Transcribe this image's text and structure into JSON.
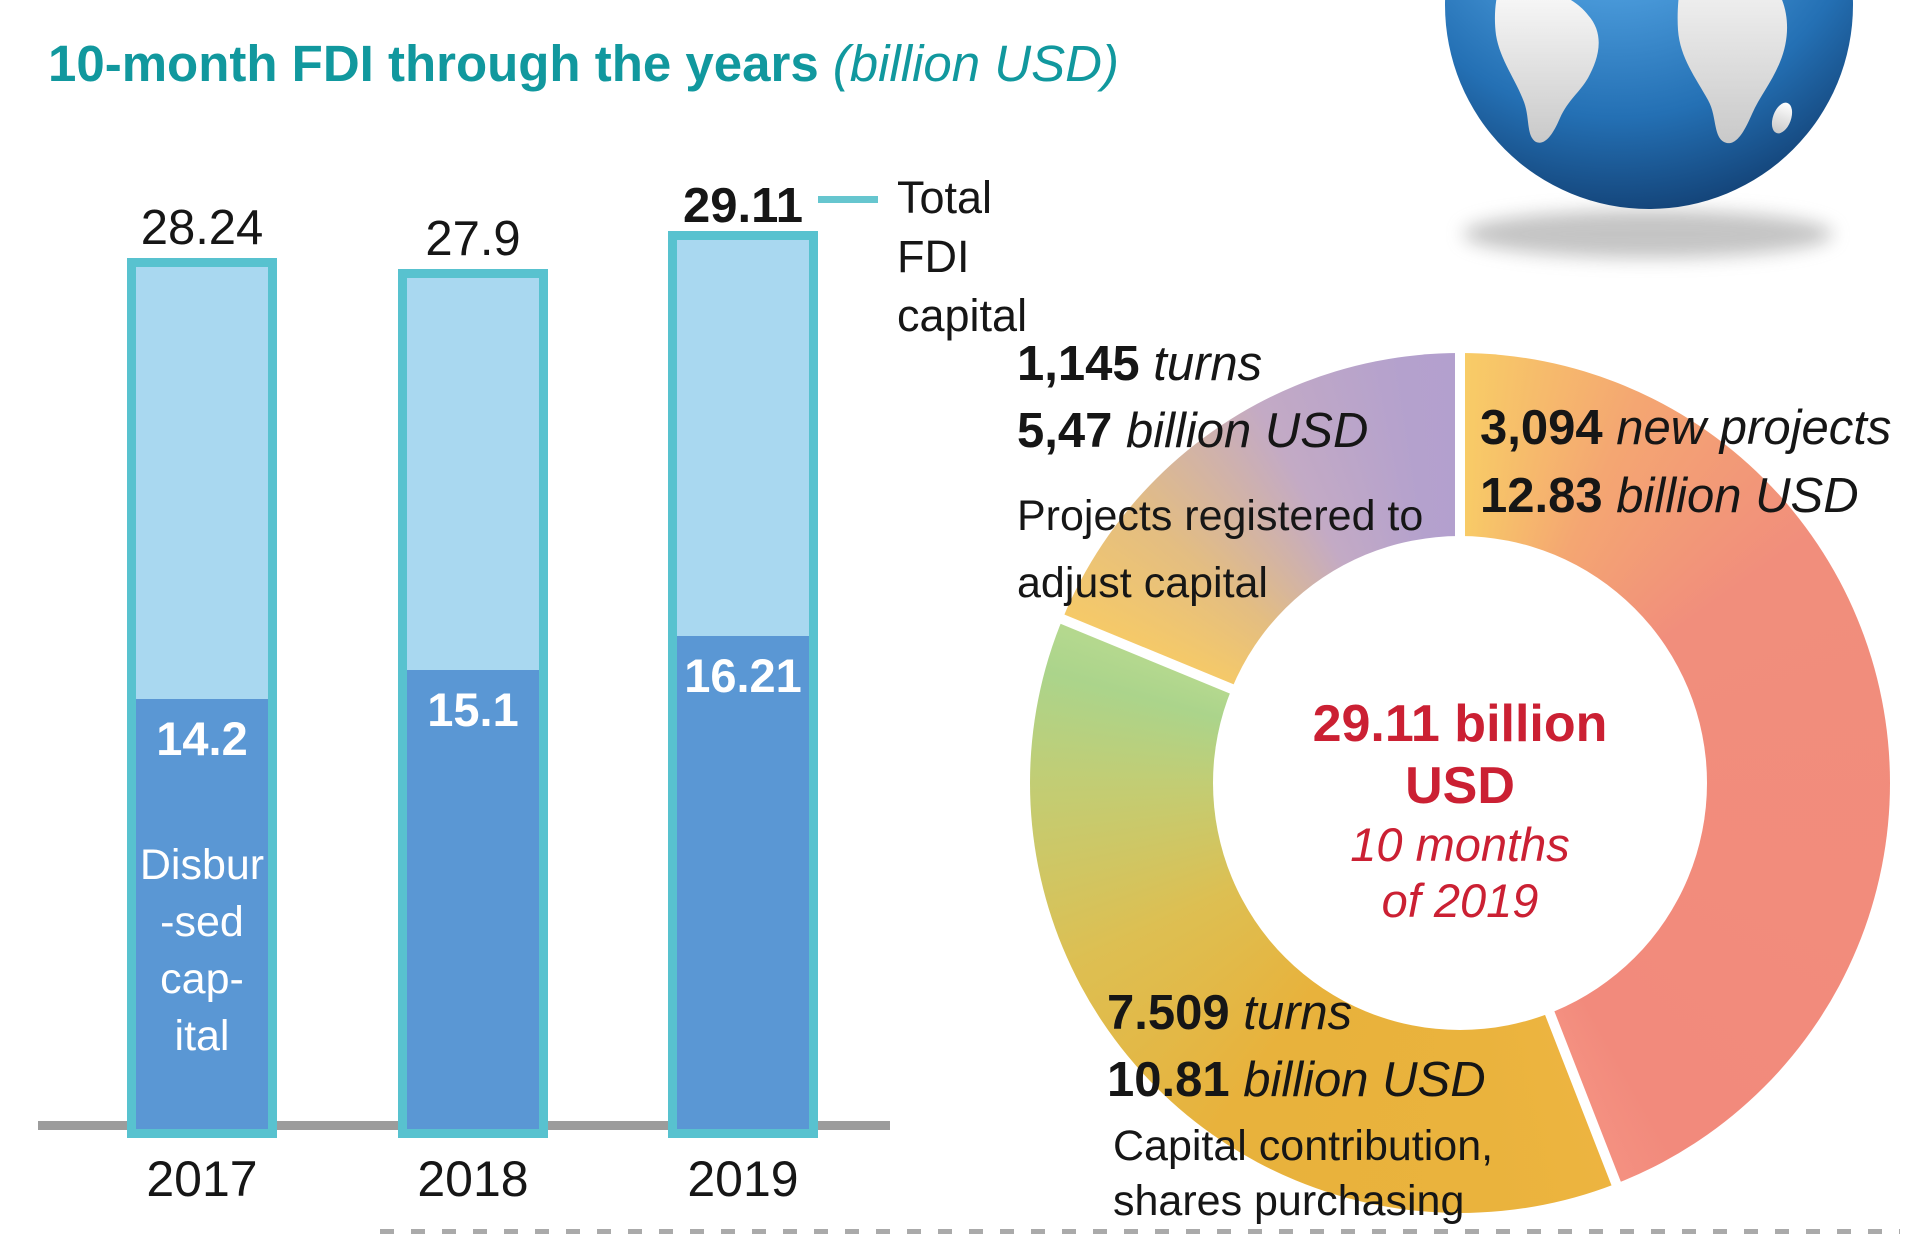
{
  "title": {
    "main": "10-month FDI through the years",
    "unit": "(billion USD)"
  },
  "legend": {
    "total_fdi": [
      "Total",
      "FDI",
      "capital"
    ],
    "disbursed_lines": [
      "Disbur",
      "-sed",
      "cap-",
      "ital"
    ]
  },
  "colors": {
    "title_teal": "#11989e",
    "bar_border_teal": "#58c2cf",
    "bar_total_fill": "#a9d8f0",
    "bar_disbursed_fill": "#5a97d4",
    "axis_gray": "#9c9c9c",
    "center_red": "#cb2033",
    "slice_new_projects_salmon": "#f28a7c",
    "slice_capital_contribution_gold": "#eab23e",
    "slice_capital_contribution_green_end": "#abd48b",
    "slice_adjust_capital_purple": "#b3a0ce",
    "text_black": "#161616"
  },
  "chart_data": [
    {
      "type": "bar",
      "title": "10-month FDI through the years",
      "title_unit": "(billion USD)",
      "categories": [
        "2017",
        "2018",
        "2019"
      ],
      "series": [
        {
          "name": "Total FDI capital",
          "values": [
            28.24,
            27.9,
            29.11
          ],
          "labels": [
            "28.24",
            "27.9",
            "29.11"
          ]
        },
        {
          "name": "Disbursed capital",
          "values": [
            14.2,
            15.1,
            16.21
          ],
          "labels": [
            "14.2",
            "15.1",
            "16.21"
          ]
        }
      ],
      "ylim": [
        0,
        29.11
      ],
      "grid": false,
      "legend_position": "right-of-last-bar"
    },
    {
      "type": "pie",
      "subtype": "donut",
      "total_value": 29.11,
      "center_label": [
        "29.11 billion",
        "USD",
        "10 months",
        "of 2019"
      ],
      "start_angle_deg": 0,
      "direction": "clockwise",
      "slices": [
        {
          "id": "new-projects",
          "count": "3,094",
          "count_unit": "new projects",
          "value": 12.83,
          "value_label": "12.83",
          "value_unit": "billion USD",
          "desc": [],
          "color": "#f28a7c"
        },
        {
          "id": "capital-contribution",
          "count": "7.509",
          "count_unit": "turns",
          "value": 10.81,
          "value_label": "10.81",
          "value_unit": "billion USD",
          "desc": [
            "Capital contribution,",
            "shares purchasing"
          ],
          "color": "#eab23e"
        },
        {
          "id": "adjust-capital",
          "count": "1,145",
          "count_unit": "turns",
          "value": 5.47,
          "value_label": "5,47",
          "value_unit": "billion USD",
          "desc": [
            "Projects registered to",
            "adjust capital"
          ],
          "color": "#b3a0ce"
        }
      ]
    }
  ]
}
